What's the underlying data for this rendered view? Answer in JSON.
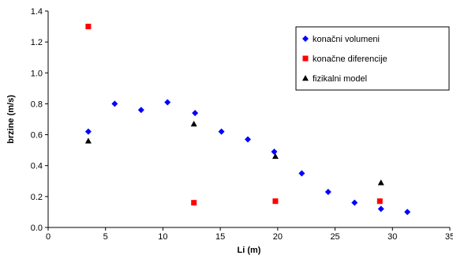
{
  "chart_data": {
    "type": "scatter",
    "title": "",
    "xlabel": "Li (m)",
    "ylabel": "brzine (m/s)",
    "xlim": [
      0,
      35
    ],
    "ylim": [
      0,
      1.4
    ],
    "xticks": [
      0,
      5,
      10,
      15,
      20,
      25,
      30,
      35
    ],
    "yticks": [
      "0.0",
      "0.2",
      "0.4",
      "0.6",
      "0.8",
      "1.0",
      "1.2",
      "1.4"
    ],
    "grid": false,
    "legend_position": "right",
    "series": [
      {
        "name": "konačni volumeni",
        "marker": "diamond",
        "color": "#0000ff",
        "points": [
          [
            3.5,
            0.62
          ],
          [
            5.8,
            0.8
          ],
          [
            8.1,
            0.76
          ],
          [
            10.4,
            0.81
          ],
          [
            12.8,
            0.74
          ],
          [
            15.1,
            0.62
          ],
          [
            17.4,
            0.57
          ],
          [
            19.7,
            0.49
          ],
          [
            22.1,
            0.35
          ],
          [
            24.4,
            0.23
          ],
          [
            26.7,
            0.16
          ],
          [
            29.0,
            0.12
          ],
          [
            31.3,
            0.1
          ]
        ]
      },
      {
        "name": "konačne diferencije",
        "marker": "square",
        "color": "#ff0000",
        "points": [
          [
            3.5,
            1.3
          ],
          [
            12.7,
            0.16
          ],
          [
            19.8,
            0.17
          ],
          [
            28.9,
            0.17
          ]
        ]
      },
      {
        "name": "fizikalni model",
        "marker": "triangle",
        "color": "#000000",
        "points": [
          [
            3.5,
            0.56
          ],
          [
            12.7,
            0.67
          ],
          [
            19.8,
            0.46
          ],
          [
            29.0,
            0.29
          ]
        ]
      }
    ]
  }
}
